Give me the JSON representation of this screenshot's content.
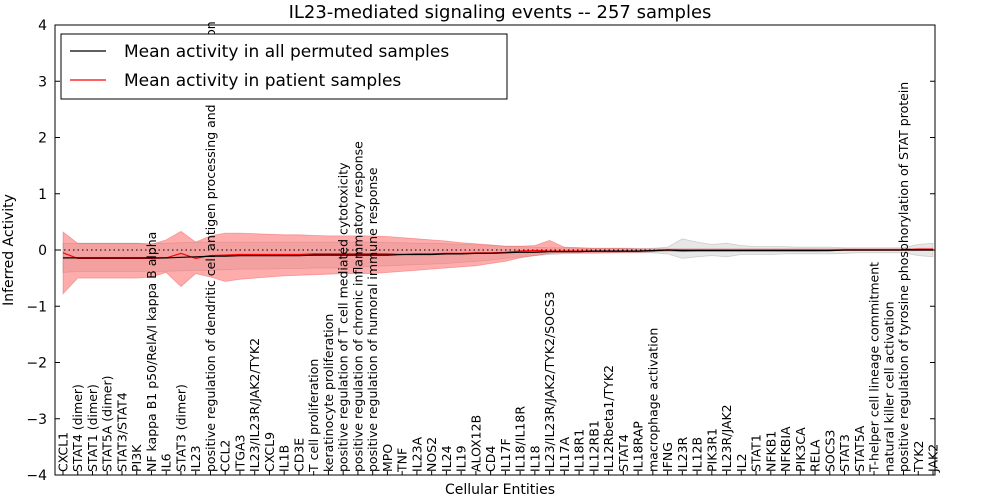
{
  "chart_data": {
    "type": "line",
    "title": "IL23-mediated signaling events -- 257 samples",
    "xlabel": "Cellular Entities",
    "ylabel": "Inferred Activity",
    "ylim": [
      -4,
      4
    ],
    "yticks": [
      -4,
      -3,
      -2,
      -1,
      0,
      1,
      2,
      3,
      4
    ],
    "ytick_labels": [
      "−4",
      "−3",
      "−2",
      "−1",
      "0",
      "1",
      "2",
      "3",
      "4"
    ],
    "legend": {
      "position": "top-left",
      "entries": [
        "Mean activity in all permuted samples",
        "Mean activity in patient samples"
      ]
    },
    "colors": {
      "permuted_line": "#000000",
      "patient_line": "#ff0000",
      "permuted_band": "#b0b0b0",
      "patient_band": "#ff5a5a",
      "zero_line": "#000000"
    },
    "categories": [
      "CXCL1",
      "STAT4 (dimer)",
      "STAT1 (dimer)",
      "STAT5A (dimer)",
      "STAT3/STAT4",
      "PI3K",
      "NF kappa B1 p50/RelA/I kappa B alpha",
      "IL6",
      "STAT3 (dimer)",
      "IL23",
      "positive regulation of dendritic cell antigen processing and presentation",
      "CCL2",
      "ITGA3",
      "IL23/IL23R/JAK2/TYK2",
      "CXCL9",
      "IL1B",
      "CD3E",
      "T cell proliferation",
      "keratinocyte proliferation",
      "positive regulation of T cell mediated cytotoxicity",
      "positive regulation of chronic inflammatory response",
      "positive regulation of humoral immune response",
      "MPO",
      "TNF",
      "IL23A",
      "NOS2",
      "IL24",
      "IL19",
      "ALOX12B",
      "CD4",
      "IL17F",
      "IL18/IL18R",
      "IL18",
      "IL23/IL23R/JAK2/TYK2/SOCS3",
      "IL17A",
      "IL18R1",
      "IL12RB1",
      "IL12Rbeta1/TYK2",
      "STAT4",
      "IL18RAP",
      "macrophage activation",
      "IFNG",
      "IL23R",
      "IL12B",
      "PIK3R1",
      "IL23R/JAK2",
      "IL2",
      "STAT1",
      "NFKB1",
      "NFKBIA",
      "PIK3CA",
      "RELA",
      "SOCS3",
      "STAT3",
      "STAT5A",
      "T-helper cell lineage commitment",
      "natural killer cell activation",
      "positive regulation of tyrosine phosphorylation of STAT protein",
      "TYK2",
      "JAK2"
    ],
    "series": [
      {
        "name": "Mean activity in all permuted samples",
        "values": [
          -0.14,
          -0.14,
          -0.14,
          -0.14,
          -0.14,
          -0.14,
          -0.14,
          -0.14,
          -0.13,
          -0.12,
          -0.11,
          -0.11,
          -0.1,
          -0.1,
          -0.1,
          -0.1,
          -0.1,
          -0.09,
          -0.09,
          -0.09,
          -0.09,
          -0.09,
          -0.09,
          -0.08,
          -0.08,
          -0.08,
          -0.07,
          -0.07,
          -0.06,
          -0.06,
          -0.05,
          -0.04,
          -0.04,
          -0.03,
          -0.03,
          -0.03,
          -0.02,
          -0.02,
          -0.02,
          -0.02,
          -0.01,
          0,
          -0.01,
          -0.01,
          -0.01,
          -0.01,
          -0.01,
          -0.01,
          -0.01,
          -0.01,
          -0.01,
          -0.01,
          -0.01,
          0,
          0,
          0,
          0,
          0,
          0,
          0
        ],
        "lower": [
          -0.4,
          -0.38,
          -0.38,
          -0.38,
          -0.38,
          -0.38,
          -0.38,
          -0.38,
          -0.37,
          -0.36,
          -0.36,
          -0.35,
          -0.34,
          -0.34,
          -0.34,
          -0.33,
          -0.33,
          -0.32,
          -0.32,
          -0.32,
          -0.3,
          -0.29,
          -0.28,
          -0.27,
          -0.26,
          -0.25,
          -0.24,
          -0.22,
          -0.2,
          -0.18,
          -0.15,
          -0.12,
          -0.1,
          -0.08,
          -0.07,
          -0.06,
          -0.06,
          -0.05,
          -0.05,
          -0.05,
          -0.05,
          -0.07,
          -0.15,
          -0.12,
          -0.1,
          -0.12,
          -0.08,
          -0.08,
          -0.08,
          -0.07,
          -0.07,
          -0.07,
          -0.07,
          -0.06,
          -0.05,
          -0.05,
          -0.05,
          -0.05,
          -0.1,
          -0.12
        ],
        "upper": [
          0.12,
          0.12,
          0.12,
          0.12,
          0.12,
          0.12,
          0.12,
          0.12,
          0.13,
          0.14,
          0.14,
          0.14,
          0.14,
          0.14,
          0.14,
          0.14,
          0.14,
          0.14,
          0.14,
          0.14,
          0.14,
          0.14,
          0.13,
          0.13,
          0.12,
          0.12,
          0.11,
          0.1,
          0.09,
          0.08,
          0.07,
          0.06,
          0.05,
          0.04,
          0.04,
          0.04,
          0.03,
          0.03,
          0.03,
          0.03,
          0.03,
          0.05,
          0.2,
          0.14,
          0.1,
          0.12,
          0.08,
          0.06,
          0.06,
          0.06,
          0.05,
          0.05,
          0.05,
          0.04,
          0.04,
          0.04,
          0.04,
          0.04,
          0.1,
          0.12
        ]
      },
      {
        "name": "Mean activity in patient samples",
        "values": [
          -0.05,
          -0.15,
          -0.15,
          -0.15,
          -0.15,
          -0.15,
          -0.15,
          -0.14,
          -0.06,
          -0.15,
          -0.1,
          -0.09,
          -0.08,
          -0.08,
          -0.08,
          -0.08,
          -0.08,
          -0.07,
          -0.07,
          -0.07,
          -0.07,
          -0.07,
          -0.07,
          -0.08,
          -0.07,
          -0.07,
          -0.06,
          -0.06,
          -0.05,
          -0.05,
          -0.04,
          -0.02,
          -0.01,
          -0.02,
          -0.02,
          -0.02,
          -0.02,
          -0.02,
          -0.02,
          -0.02,
          -0.01,
          0,
          0,
          0,
          0,
          0,
          0,
          0,
          0,
          0,
          0,
          0,
          0,
          0,
          0,
          0,
          0,
          0,
          0.01,
          0.01
        ],
        "lower": [
          -0.78,
          -0.5,
          -0.5,
          -0.5,
          -0.5,
          -0.5,
          -0.48,
          -0.4,
          -0.65,
          -0.42,
          -0.48,
          -0.56,
          -0.52,
          -0.5,
          -0.48,
          -0.46,
          -0.45,
          -0.44,
          -0.43,
          -0.42,
          -0.42,
          -0.42,
          -0.4,
          -0.38,
          -0.36,
          -0.34,
          -0.32,
          -0.3,
          -0.28,
          -0.24,
          -0.2,
          -0.14,
          -0.1,
          -0.06,
          -0.05,
          -0.05,
          -0.05,
          -0.05,
          -0.04,
          -0.04,
          -0.03,
          -0.02,
          -0.03,
          -0.02,
          -0.02,
          -0.02,
          -0.02,
          -0.02,
          -0.02,
          -0.02,
          -0.02,
          -0.02,
          -0.01,
          -0.01,
          -0.01,
          -0.01,
          -0.01,
          -0.01,
          -0.01,
          -0.01
        ],
        "upper": [
          0.32,
          0.12,
          0.12,
          0.12,
          0.12,
          0.12,
          0.1,
          0.18,
          0.33,
          0.14,
          0.25,
          0.3,
          0.3,
          0.29,
          0.28,
          0.27,
          0.27,
          0.26,
          0.25,
          0.25,
          0.25,
          0.25,
          0.24,
          0.22,
          0.2,
          0.18,
          0.16,
          0.13,
          0.11,
          0.09,
          0.07,
          0.07,
          0.08,
          0.17,
          0.05,
          0.04,
          0.03,
          0.03,
          0.03,
          0.02,
          0.02,
          0.02,
          0.02,
          0.02,
          0.02,
          0.02,
          0.02,
          0.02,
          0.02,
          0.02,
          0.02,
          0.02,
          0.02,
          0.02,
          0.02,
          0.02,
          0.02,
          0.02,
          0.03,
          0.03
        ]
      }
    ]
  }
}
